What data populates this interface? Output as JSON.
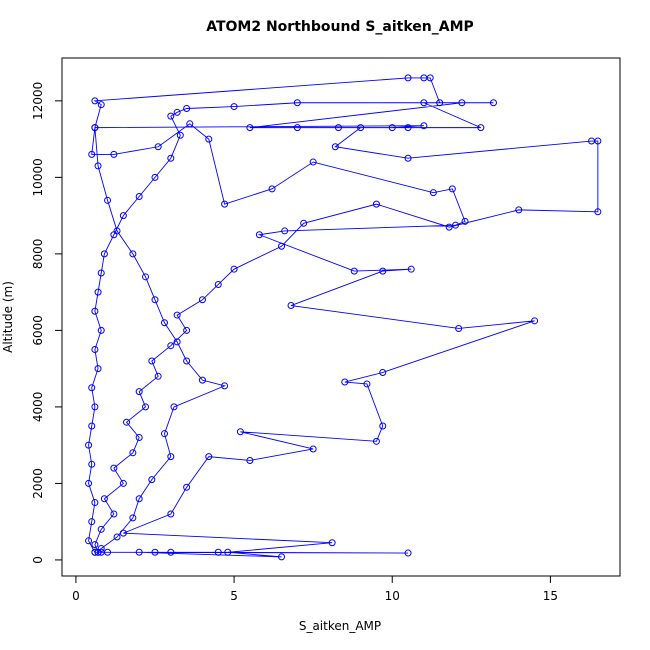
{
  "chart_data": {
    "type": "line",
    "markers": true,
    "title": "ATOM2 Northbound S_aitken_AMP",
    "x_label": "S_aitken_AMP",
    "y_label": "Altitude (m)",
    "xlim": [
      -0.44,
      17.2
    ],
    "ylim": [
      -420,
      13120
    ],
    "xticks": [
      0,
      5,
      10,
      15
    ],
    "yticks": [
      0,
      2000,
      4000,
      6000,
      8000,
      10000,
      12000
    ],
    "grid": false,
    "x": [
      0.6,
      0.8,
      1.0,
      2.5,
      3.0,
      4.5,
      10.5,
      0.7,
      0.6,
      0.8,
      1.2,
      0.9,
      1.5,
      1.2,
      1.8,
      2.0,
      1.6,
      2.2,
      2.0,
      2.6,
      2.4,
      3.0,
      3.5,
      3.2,
      4.0,
      4.5,
      5.0,
      6.5,
      7.2,
      9.5,
      11.8,
      14.0,
      16.5,
      16.5,
      16.3,
      10.5,
      8.2,
      9.0,
      10.5,
      12.8,
      11.0,
      13.2,
      7.0,
      5.0,
      3.5,
      3.2,
      3.0,
      3.3,
      3.0,
      2.5,
      2.0,
      1.5,
      1.2,
      0.9,
      0.8,
      0.7,
      0.6,
      0.8,
      0.6,
      0.7,
      0.5,
      0.6,
      0.5,
      0.4,
      0.5,
      0.4,
      0.6,
      0.5,
      0.4,
      0.6,
      2.0,
      6.5,
      4.8,
      8.1,
      1.5,
      3.0,
      3.5,
      4.2,
      5.5,
      7.5,
      5.2,
      9.5,
      9.7,
      9.2,
      8.5,
      9.7,
      14.5,
      12.1,
      6.8,
      9.7,
      10.6,
      8.8,
      5.8,
      6.6,
      12.0,
      12.3,
      11.9,
      11.3,
      7.5,
      6.2,
      4.7,
      4.2,
      3.6,
      2.6,
      1.2,
      0.5,
      0.6,
      0.8,
      0.6,
      10.5,
      11.0,
      11.2,
      11.5,
      12.2,
      5.5,
      7.0,
      8.3,
      10.0,
      11.0,
      0.6,
      0.7,
      1.0,
      1.3,
      1.8,
      2.2,
      2.5,
      2.8,
      3.2,
      3.5,
      4.0,
      4.7,
      3.1,
      2.8,
      3.0,
      2.4,
      2.0,
      1.8,
      1.3,
      0.8,
      0.7
    ],
    "series": [
      {
        "color": "#0000ff",
        "values": [
          200,
          200,
          200,
          200,
          200,
          200,
          180,
          200,
          400,
          800,
          1200,
          1600,
          2000,
          2400,
          2800,
          3200,
          3600,
          4000,
          4400,
          4800,
          5200,
          5600,
          6000,
          6400,
          6800,
          7200,
          7600,
          8200,
          8800,
          9300,
          8700,
          9150,
          9100,
          10950,
          10950,
          10500,
          10800,
          11300,
          11300,
          11300,
          11950,
          11950,
          11950,
          11850,
          11800,
          11700,
          11600,
          11100,
          10500,
          10000,
          9500,
          9000,
          8500,
          8000,
          7500,
          7000,
          6500,
          6000,
          5500,
          5000,
          4500,
          4000,
          3500,
          3000,
          2500,
          2000,
          1500,
          1000,
          500,
          200,
          200,
          80,
          200,
          450,
          700,
          1200,
          1900,
          2700,
          2600,
          2900,
          3350,
          3100,
          3500,
          4600,
          4650,
          4900,
          6250,
          6050,
          6650,
          7550,
          7600,
          7550,
          8500,
          8600,
          8750,
          8850,
          9700,
          9600,
          10400,
          9700,
          9300,
          11000,
          11400,
          10800,
          10600,
          10600,
          11300,
          11900,
          12000,
          12600,
          12600,
          12600,
          11950,
          11950,
          11300,
          11300,
          11300,
          11300,
          11350,
          11300,
          10300,
          9400,
          8600,
          8000,
          7400,
          6800,
          6200,
          5700,
          5200,
          4700,
          4550,
          4000,
          3300,
          2700,
          2100,
          1600,
          1100,
          600,
          300,
          200
        ]
      }
    ]
  }
}
